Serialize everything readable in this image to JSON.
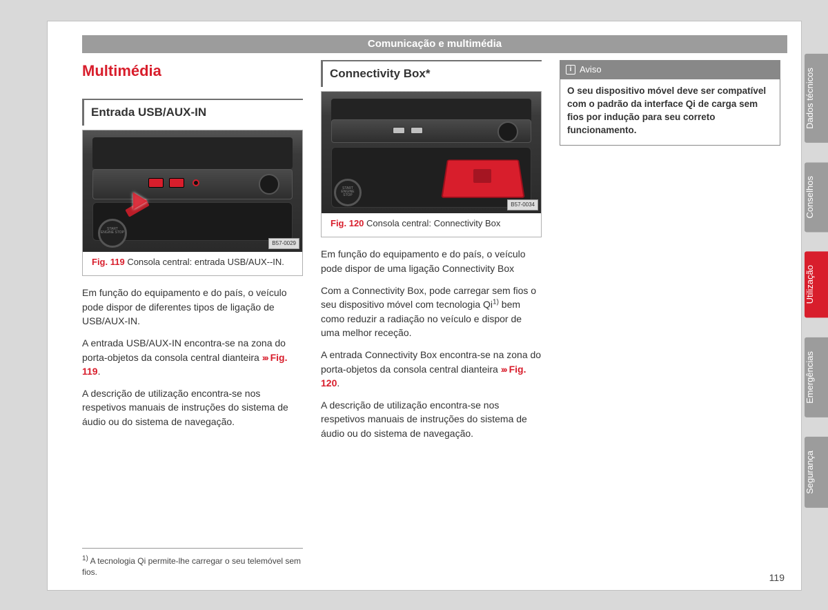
{
  "header": "Comunicação e multimédia",
  "pageNumber": "119",
  "tabs": [
    {
      "label": "Dados técnicos",
      "active": false
    },
    {
      "label": "Conselhos",
      "active": false
    },
    {
      "label": "Utilização",
      "active": true
    },
    {
      "label": "Emergências",
      "active": false
    },
    {
      "label": "Segurança",
      "active": false
    }
  ],
  "col1": {
    "title": "Multimédia",
    "section": "Entrada USB/AUX-IN",
    "fig": {
      "ref": "Fig. 119",
      "caption": " Consola central: entrada USB/AUX--IN.",
      "code": "B57-0029",
      "btn": "START ENGINE STOP"
    },
    "p1": "Em função do equipamento e do país, o veículo pode dispor de diferentes tipos de ligação de USB/AUX-IN.",
    "p2a": "A entrada USB/AUX-IN encontra-se na zona do porta-objetos da consola central dianteira ",
    "p2arrows": "›››",
    "p2ref": " Fig. 119",
    "p2b": ".",
    "p3": "A descrição de utilização encontra-se nos respetivos manuais de instruções do sistema de áudio ou do sistema de navegação.",
    "footSup": "1)",
    "footnote": " A tecnologia Qi permite-lhe carregar o seu telemóvel sem fios."
  },
  "col2": {
    "section": "Connectivity Box*",
    "fig": {
      "ref": "Fig. 120",
      "caption": " Consola central: Connectivity Box",
      "code": "B57-0034",
      "btn": "START ENGINE STOP"
    },
    "p1": "Em função do equipamento e do país, o veículo pode dispor de uma ligação Connectivity Box",
    "p2a": "Com a Connectivity Box, pode carregar sem fios o seu dispositivo móvel com tecnologia Qi",
    "p2sup": "1)",
    "p2b": " bem como reduzir a radiação no veículo e dispor de uma melhor receção.",
    "p3a": "A entrada Connectivity Box encontra-se na zona do porta-objetos da consola central dianteira ",
    "p3arrows": "›››",
    "p3ref": " Fig. 120",
    "p3b": ".",
    "p4": "A descrição de utilização encontra-se nos respetivos manuais de instruções do sistema de áudio ou do sistema de navegação."
  },
  "col3": {
    "avisoIcon": "i",
    "avisoTitle": "Aviso",
    "avisoBody": "O seu dispositivo móvel deve ser compatível com o padrão da interface Qi de carga sem fios por indução para seu correto funcionamento."
  },
  "colors": {
    "accent": "#d81e2c",
    "grey": "#9c9c9c",
    "pageBg": "#ffffff",
    "outerBg": "#d9d9d9"
  }
}
